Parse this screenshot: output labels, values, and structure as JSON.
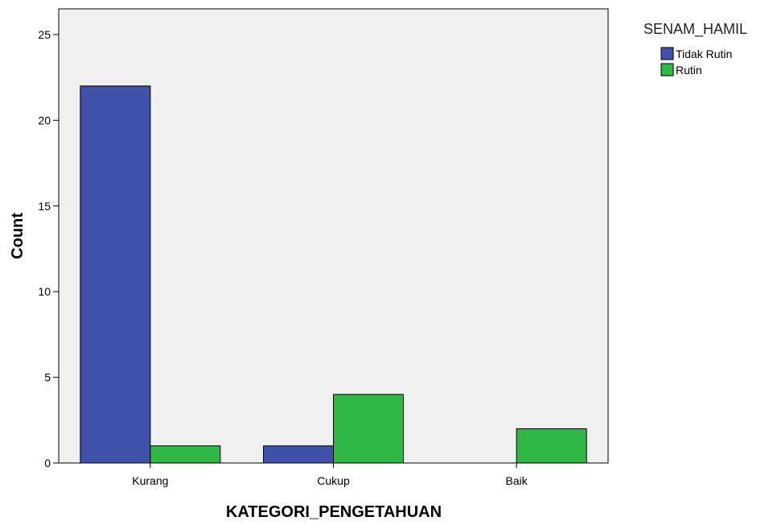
{
  "chart_data": {
    "type": "bar",
    "categories": [
      "Kurang",
      "Cukup",
      "Baik"
    ],
    "series": [
      {
        "name": "Tidak Rutin",
        "values": [
          22,
          1,
          0
        ],
        "color": "#3f51a8"
      },
      {
        "name": "Rutin",
        "values": [
          1,
          4,
          2
        ],
        "color": "#2fb845"
      }
    ],
    "xlabel": "KATEGORI_PENGETAHUAN",
    "ylabel": "Count",
    "ylim": [
      0,
      26.5
    ],
    "yticks": [
      0,
      5,
      10,
      15,
      20,
      25
    ],
    "legend_title": "SENAM_HAMIL",
    "legend_position": "top-right",
    "plot_background": "#f0f0f0",
    "grid": false
  }
}
